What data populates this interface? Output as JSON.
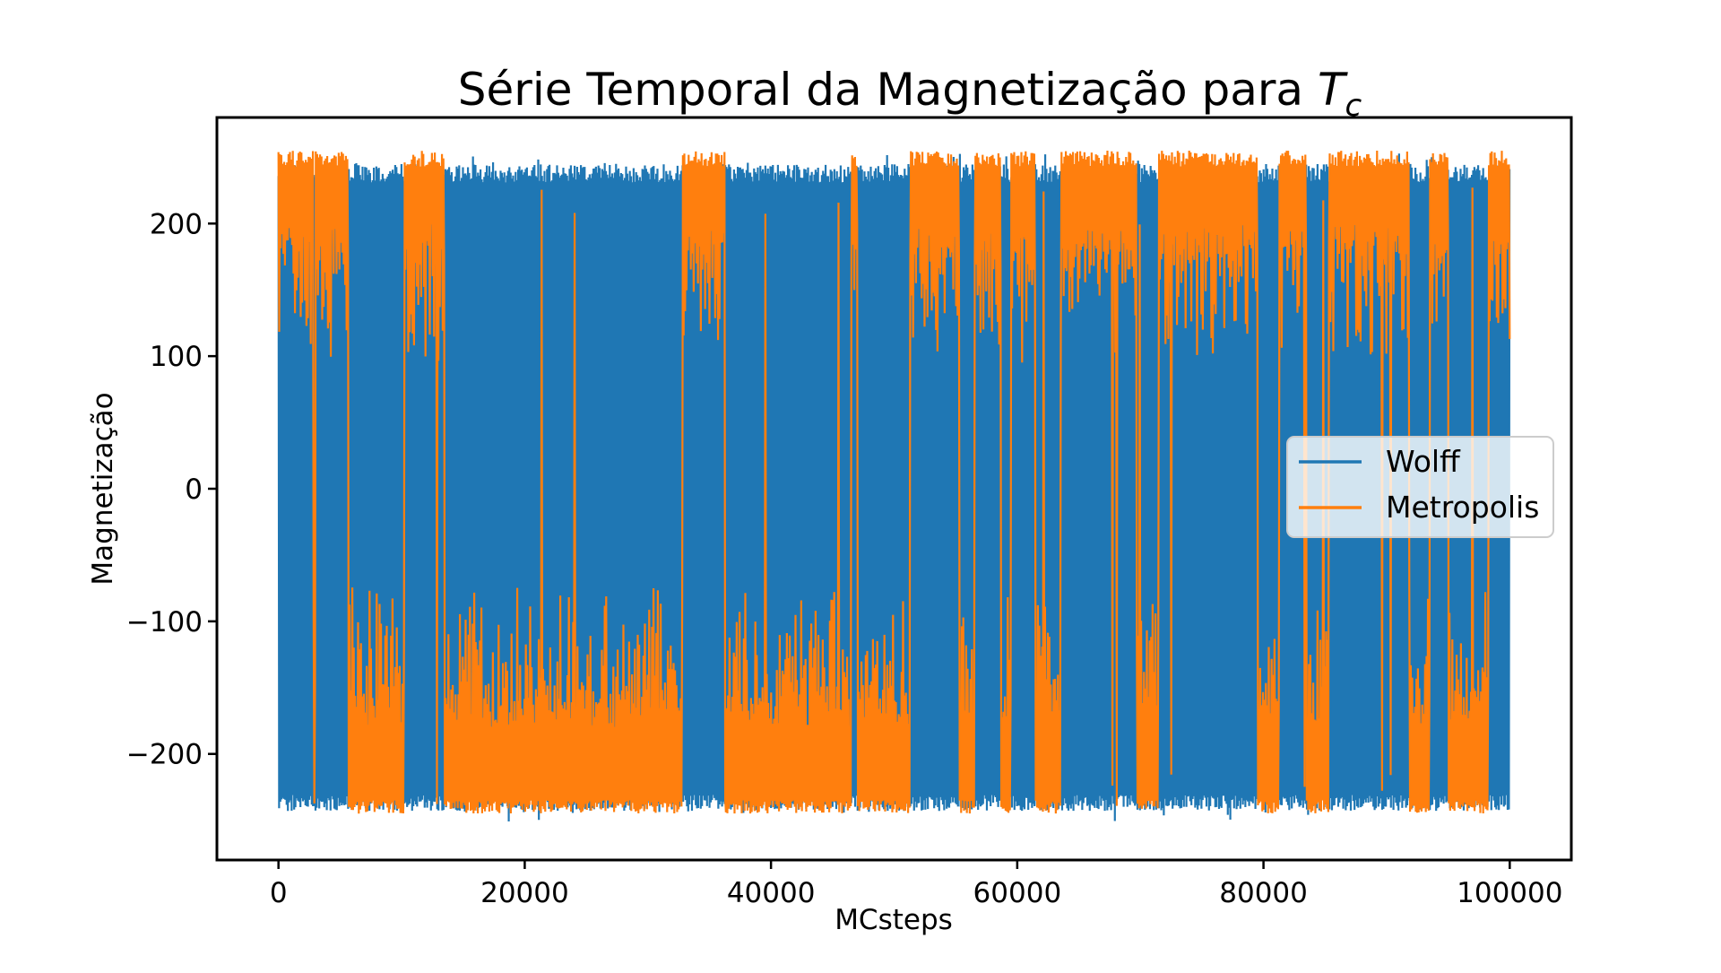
{
  "chart_data": {
    "type": "line",
    "title_main": "Série Temporal da Magnetização para ",
    "title_symbol": "T",
    "title_subscript": "c",
    "xlabel": "MCsteps",
    "ylabel": "Magnetização",
    "xlim": [
      -5000,
      105000
    ],
    "ylim": [
      -280,
      280
    ],
    "xticks": [
      0,
      20000,
      40000,
      60000,
      80000,
      100000
    ],
    "xtick_labels": [
      "0",
      "20000",
      "40000",
      "60000",
      "80000",
      "100000"
    ],
    "yticks": [
      -200,
      -100,
      0,
      100,
      200
    ],
    "ytick_labels": [
      "−200",
      "−100",
      "0",
      "100",
      "200"
    ],
    "grid": false,
    "legend_position": "center-right",
    "series": [
      {
        "name": "Wolff",
        "color": "#1f77b4",
        "x_range": [
          0,
          100000
        ],
        "band": [
          -243,
          245
        ],
        "description": "rapid oscillation between approx -240 and +245 over all steps"
      },
      {
        "name": "Metropolis",
        "color": "#ff7f0e",
        "x_range": [
          0,
          100000
        ],
        "states": [
          {
            "x": 0,
            "m": 1
          },
          {
            "x": 1000,
            "m": 1
          },
          {
            "x": 2800,
            "m": -1
          },
          {
            "x": 3000,
            "m": 1
          },
          {
            "x": 5700,
            "m": -1
          },
          {
            "x": 10200,
            "m": 1
          },
          {
            "x": 13500,
            "m": -1
          },
          {
            "x": 16700,
            "m": -1
          },
          {
            "x": 18600,
            "m": -1
          },
          {
            "x": 21300,
            "m": -1
          },
          {
            "x": 23300,
            "m": -1
          },
          {
            "x": 32800,
            "m": 1
          },
          {
            "x": 36300,
            "m": -1
          },
          {
            "x": 46500,
            "m": 1
          },
          {
            "x": 47000,
            "m": -1
          },
          {
            "x": 51300,
            "m": 1
          },
          {
            "x": 55300,
            "m": -1
          },
          {
            "x": 56500,
            "m": 1
          },
          {
            "x": 58700,
            "m": -1
          },
          {
            "x": 59500,
            "m": 1
          },
          {
            "x": 61500,
            "m": -1
          },
          {
            "x": 63500,
            "m": 1
          },
          {
            "x": 64500,
            "m": 1
          },
          {
            "x": 69700,
            "m": -1
          },
          {
            "x": 71500,
            "m": 1
          },
          {
            "x": 79500,
            "m": -1
          },
          {
            "x": 81300,
            "m": 1
          },
          {
            "x": 83500,
            "m": -1
          },
          {
            "x": 85300,
            "m": 1
          },
          {
            "x": 91800,
            "m": -1
          },
          {
            "x": 93500,
            "m": 1
          },
          {
            "x": 95000,
            "m": -1
          },
          {
            "x": 98300,
            "m": 1
          },
          {
            "x": 100000,
            "m": 1
          }
        ],
        "up_level": [
          180,
          255
        ],
        "down_level": [
          -245,
          -160
        ]
      }
    ]
  }
}
